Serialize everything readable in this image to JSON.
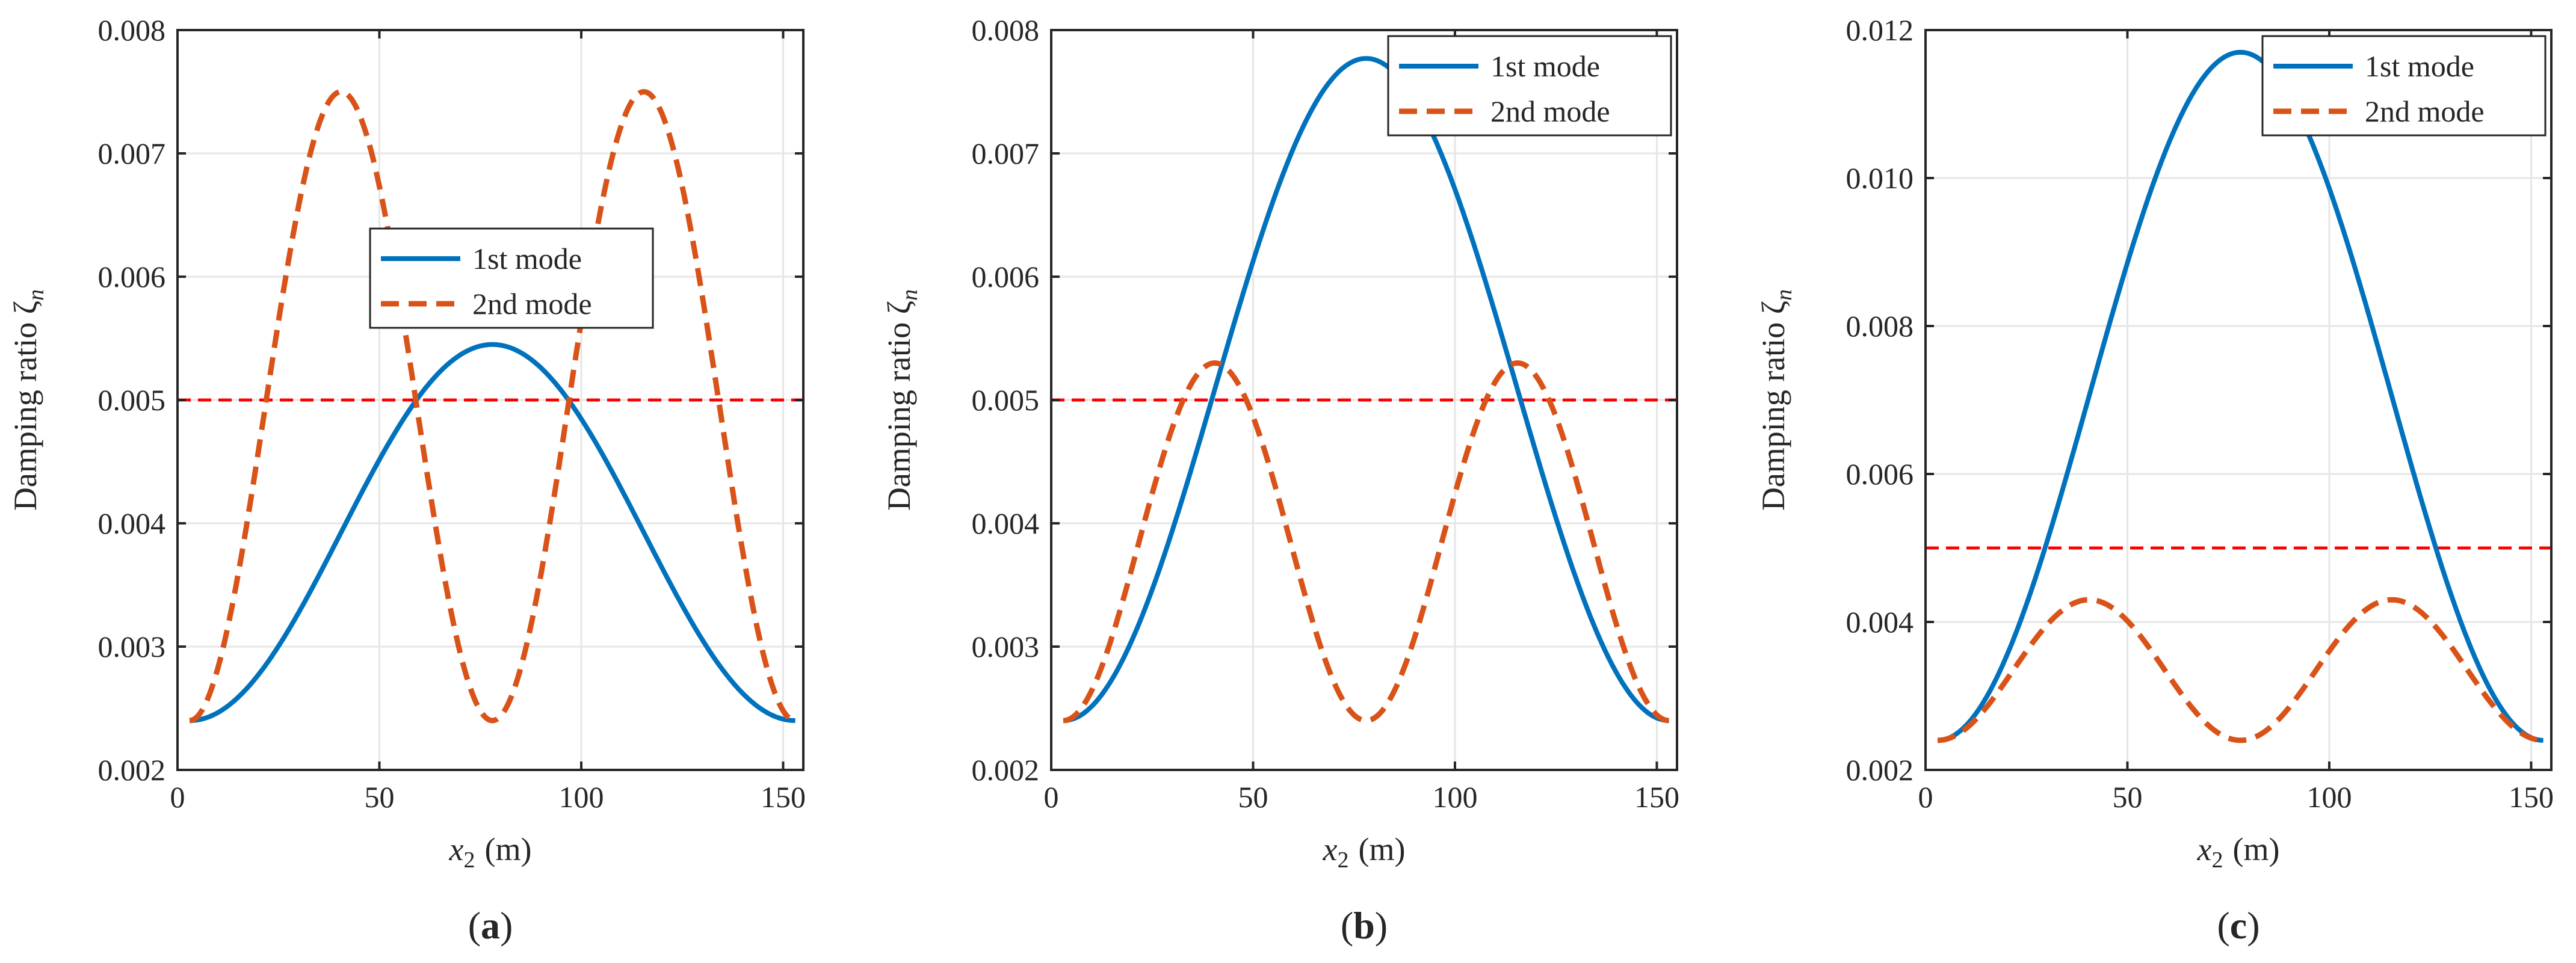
{
  "figure_caption_parts": [
    "(",
    ")"
  ],
  "colors": {
    "first_mode": "#0072BD",
    "second_mode": "#D95319",
    "reference_line": "#FF0000",
    "grid": "#E6E6E6",
    "axis": "#262626"
  },
  "chart_data": [
    {
      "panel_label": "a",
      "type": "line",
      "xlabel": "x",
      "xlabel_sub": "2",
      "xlabel_unit": "(m)",
      "ylabel": "Damping ratio ζ",
      "ylabel_sub": "n",
      "xlim": [
        0,
        155
      ],
      "ylim": [
        0.002,
        0.008
      ],
      "xticks": [
        0,
        50,
        100,
        150
      ],
      "yticks": [
        0.002,
        0.003,
        0.004,
        0.005,
        0.006,
        0.007,
        0.008
      ],
      "ytick_labels": [
        "0.002",
        "0.003",
        "0.004",
        "0.005",
        "0.006",
        "0.007",
        "0.008"
      ],
      "grid": true,
      "legend_position": "center",
      "reference_line": 0.005,
      "series": [
        {
          "name": "1st mode",
          "style": "solid",
          "x_range": [
            3,
            153
          ],
          "y_min": 0.0024,
          "y_max": 0.00545,
          "shape": "single-hump",
          "peak_x": 78
        },
        {
          "name": "2nd mode",
          "style": "dashed",
          "x_range": [
            3,
            153
          ],
          "y_min": 0.0024,
          "y_max": 0.0075,
          "shape": "double-hump",
          "peak_x": [
            40,
            116
          ],
          "trough_x": 78
        }
      ]
    },
    {
      "panel_label": "b",
      "type": "line",
      "xlabel": "x",
      "xlabel_sub": "2",
      "xlabel_unit": "(m)",
      "ylabel": "Damping ratio ζ",
      "ylabel_sub": "n",
      "xlim": [
        0,
        155
      ],
      "ylim": [
        0.002,
        0.008
      ],
      "xticks": [
        0,
        50,
        100,
        150
      ],
      "yticks": [
        0.002,
        0.003,
        0.004,
        0.005,
        0.006,
        0.007,
        0.008
      ],
      "ytick_labels": [
        "0.002",
        "0.003",
        "0.004",
        "0.005",
        "0.006",
        "0.007",
        "0.008"
      ],
      "grid": true,
      "legend_position": "top-right",
      "reference_line": 0.005,
      "series": [
        {
          "name": "1st mode",
          "style": "solid",
          "x_range": [
            3,
            153
          ],
          "y_min": 0.0024,
          "y_max": 0.00777,
          "shape": "single-hump",
          "peak_x": 78
        },
        {
          "name": "2nd mode",
          "style": "dashed",
          "x_range": [
            3,
            153
          ],
          "y_min": 0.0024,
          "y_max": 0.0053,
          "shape": "double-hump",
          "peak_x": [
            40,
            116
          ],
          "trough_x": 78
        }
      ]
    },
    {
      "panel_label": "c",
      "type": "line",
      "xlabel": "x",
      "xlabel_sub": "2",
      "xlabel_unit": "(m)",
      "ylabel": "Damping ratio ζ",
      "ylabel_sub": "n",
      "xlim": [
        0,
        155
      ],
      "ylim": [
        0.002,
        0.012
      ],
      "xticks": [
        0,
        50,
        100,
        150
      ],
      "yticks": [
        0.002,
        0.004,
        0.006,
        0.008,
        0.01,
        0.012
      ],
      "ytick_labels": [
        "0.002",
        "0.004",
        "0.006",
        "0.008",
        "0.010",
        "0.012"
      ],
      "grid": true,
      "legend_position": "top-right",
      "reference_line": 0.005,
      "series": [
        {
          "name": "1st mode",
          "style": "solid",
          "x_range": [
            3,
            153
          ],
          "y_min": 0.0024,
          "y_max": 0.0117,
          "shape": "single-hump",
          "peak_x": 78
        },
        {
          "name": "2nd mode",
          "style": "dashed",
          "x_range": [
            3,
            153
          ],
          "y_min": 0.0024,
          "y_max": 0.0043,
          "shape": "double-hump",
          "peak_x": [
            40,
            116
          ],
          "trough_x": 78
        }
      ]
    }
  ]
}
